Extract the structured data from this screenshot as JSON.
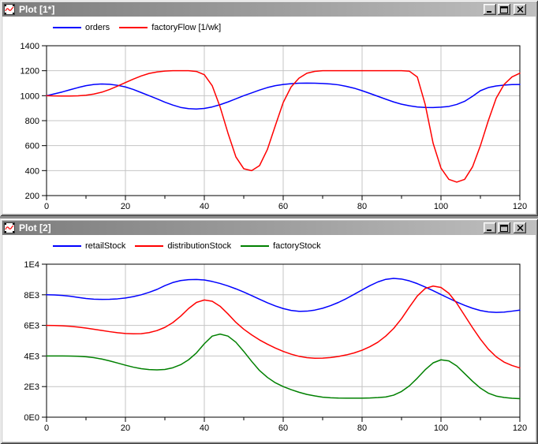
{
  "colors": {
    "titlebar_gradient_left": "#7d7d7d",
    "titlebar_gradient_right": "#bfbfbf",
    "window_chrome": "#c0c0c0",
    "plot_background": "#ffffff",
    "grid": "#c4c4c4",
    "axis": "#000000",
    "series_blue": "#0000ff",
    "series_red": "#ff0000",
    "series_green": "#008000"
  },
  "icons": {
    "window_icon": "plot-curve-icon",
    "minimize": "minimize-icon",
    "maximize": "maximize-icon",
    "close": "close-icon"
  },
  "windows": [
    {
      "title": "Plot [1*]"
    },
    {
      "title": "Plot [2]"
    }
  ],
  "chart_data": [
    {
      "type": "line",
      "window_title": "Plot [1*]",
      "grid": true,
      "grid_color": "#c4c4c4",
      "legend_position": "top-left",
      "xlim": [
        0,
        120
      ],
      "ylim": [
        200,
        1400
      ],
      "x_major_ticks": [
        0,
        20,
        40,
        60,
        80,
        100,
        120
      ],
      "x_tick_labels": [
        "0",
        "20",
        "40",
        "60",
        "80",
        "100",
        "120"
      ],
      "x_minor_step": 10,
      "y_major_ticks": [
        200,
        400,
        600,
        800,
        1000,
        1200,
        1400
      ],
      "y_tick_labels": [
        "200",
        "400",
        "600",
        "800",
        "1000",
        "1200",
        "1400"
      ],
      "x": [
        0,
        2,
        4,
        6,
        8,
        10,
        12,
        14,
        16,
        18,
        20,
        22,
        24,
        26,
        28,
        30,
        32,
        34,
        36,
        38,
        40,
        42,
        44,
        46,
        48,
        50,
        52,
        54,
        56,
        58,
        60,
        62,
        64,
        66,
        68,
        70,
        72,
        74,
        76,
        78,
        80,
        82,
        84,
        86,
        88,
        90,
        92,
        94,
        96,
        98,
        100,
        102,
        104,
        106,
        108,
        110,
        112,
        114,
        116,
        118,
        120
      ],
      "series": [
        {
          "name": "orders",
          "color": "#0000ff",
          "values": [
            1000,
            1015,
            1030,
            1048,
            1065,
            1080,
            1090,
            1094,
            1091,
            1083,
            1070,
            1050,
            1025,
            1000,
            975,
            948,
            925,
            906,
            896,
            893,
            898,
            910,
            928,
            950,
            975,
            1000,
            1022,
            1045,
            1065,
            1080,
            1090,
            1096,
            1100,
            1101,
            1100,
            1098,
            1094,
            1087,
            1075,
            1060,
            1040,
            1018,
            995,
            972,
            950,
            932,
            919,
            910,
            906,
            905,
            908,
            914,
            930,
            955,
            995,
            1040,
            1065,
            1078,
            1085,
            1089,
            1090
          ]
        },
        {
          "name": "factoryFlow [1/wk]",
          "color": "#ff0000",
          "values": [
            1000,
            998,
            997,
            997,
            999,
            1004,
            1013,
            1028,
            1050,
            1077,
            1105,
            1133,
            1158,
            1178,
            1190,
            1197,
            1200,
            1200,
            1200,
            1194,
            1168,
            1080,
            910,
            700,
            510,
            415,
            400,
            440,
            570,
            760,
            945,
            1070,
            1140,
            1180,
            1195,
            1200,
            1200,
            1200,
            1200,
            1200,
            1200,
            1200,
            1200,
            1200,
            1200,
            1200,
            1196,
            1150,
            930,
            620,
            420,
            330,
            308,
            330,
            430,
            600,
            800,
            980,
            1090,
            1150,
            1180
          ]
        }
      ]
    },
    {
      "type": "line",
      "window_title": "Plot [2]",
      "grid": true,
      "grid_color": "#c4c4c4",
      "legend_position": "top-left",
      "xlim": [
        0,
        120
      ],
      "ylim": [
        0,
        10000
      ],
      "x_major_ticks": [
        0,
        20,
        40,
        60,
        80,
        100,
        120
      ],
      "x_tick_labels": [
        "0",
        "20",
        "40",
        "60",
        "80",
        "100",
        "120"
      ],
      "x_minor_step": 10,
      "y_major_ticks": [
        0,
        2000,
        4000,
        6000,
        8000,
        10000
      ],
      "y_tick_labels": [
        "0E0",
        "2E3",
        "4E3",
        "6E3",
        "8E3",
        "1E4"
      ],
      "x": [
        0,
        2,
        4,
        6,
        8,
        10,
        12,
        14,
        16,
        18,
        20,
        22,
        24,
        26,
        28,
        30,
        32,
        34,
        36,
        38,
        40,
        42,
        44,
        46,
        48,
        50,
        52,
        54,
        56,
        58,
        60,
        62,
        64,
        66,
        68,
        70,
        72,
        74,
        76,
        78,
        80,
        82,
        84,
        86,
        88,
        90,
        92,
        94,
        96,
        98,
        100,
        102,
        104,
        106,
        108,
        110,
        112,
        114,
        116,
        118,
        120
      ],
      "series": [
        {
          "name": "retailStock",
          "color": "#0000ff",
          "values": [
            8000,
            7990,
            7960,
            7905,
            7830,
            7760,
            7715,
            7700,
            7705,
            7735,
            7790,
            7880,
            8000,
            8160,
            8350,
            8600,
            8800,
            8930,
            8990,
            9000,
            8970,
            8870,
            8740,
            8580,
            8390,
            8180,
            7950,
            7710,
            7480,
            7270,
            7100,
            6980,
            6920,
            6930,
            7000,
            7120,
            7290,
            7500,
            7750,
            8030,
            8320,
            8600,
            8840,
            9010,
            9070,
            9030,
            8910,
            8730,
            8510,
            8270,
            8020,
            7770,
            7530,
            7310,
            7120,
            6970,
            6880,
            6850,
            6870,
            6930,
            7000
          ]
        },
        {
          "name": "distributionStock",
          "color": "#ff0000",
          "values": [
            6000,
            5995,
            5975,
            5940,
            5890,
            5825,
            5750,
            5670,
            5590,
            5520,
            5470,
            5450,
            5460,
            5530,
            5660,
            5870,
            6180,
            6600,
            7100,
            7500,
            7660,
            7580,
            7250,
            6750,
            6200,
            5750,
            5380,
            5050,
            4770,
            4520,
            4300,
            4120,
            3980,
            3890,
            3855,
            3860,
            3900,
            3970,
            4070,
            4200,
            4380,
            4610,
            4900,
            5300,
            5800,
            6440,
            7200,
            7920,
            8410,
            8570,
            8480,
            8100,
            7450,
            6650,
            5850,
            5100,
            4450,
            3950,
            3600,
            3380,
            3220
          ]
        },
        {
          "name": "factoryStock",
          "color": "#008000",
          "values": [
            4000,
            4000,
            4000,
            3995,
            3985,
            3950,
            3890,
            3800,
            3680,
            3540,
            3400,
            3270,
            3170,
            3110,
            3090,
            3120,
            3230,
            3430,
            3750,
            4200,
            4800,
            5300,
            5430,
            5300,
            4900,
            4300,
            3650,
            3050,
            2600,
            2250,
            2000,
            1800,
            1630,
            1490,
            1390,
            1310,
            1270,
            1250,
            1245,
            1245,
            1245,
            1255,
            1280,
            1320,
            1440,
            1680,
            2050,
            2550,
            3100,
            3550,
            3750,
            3680,
            3350,
            2850,
            2350,
            1900,
            1570,
            1380,
            1290,
            1240,
            1210
          ]
        }
      ]
    }
  ]
}
